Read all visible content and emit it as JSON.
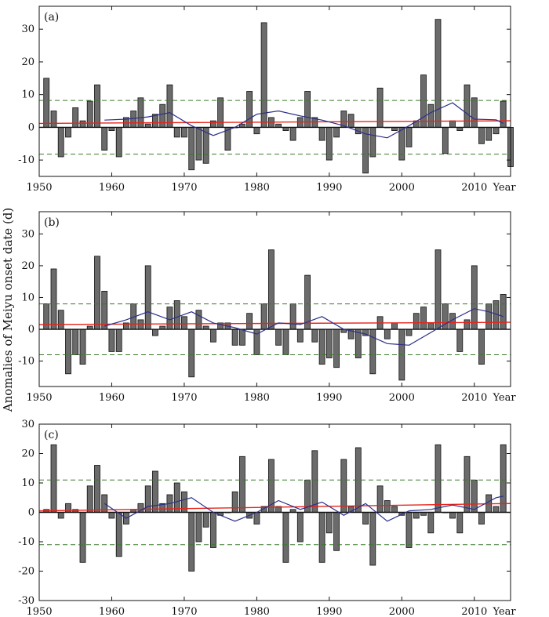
{
  "figure": {
    "ylabel": "Anomalies of  Meiyu  onset  date (d)",
    "xlabel": "Year"
  },
  "chart_data": [
    {
      "type": "bar",
      "panel_label": "(a)",
      "xlim": [
        1950,
        2015
      ],
      "ylim": [
        -15,
        37
      ],
      "xticks": [
        1950,
        1960,
        1970,
        1980,
        1990,
        2000,
        2010
      ],
      "yticks": [
        -10,
        0,
        10,
        20,
        30
      ],
      "bar_color": "#6b6b6b",
      "years": [
        1951,
        1952,
        1953,
        1954,
        1955,
        1956,
        1957,
        1958,
        1959,
        1960,
        1961,
        1962,
        1963,
        1964,
        1965,
        1966,
        1967,
        1968,
        1969,
        1970,
        1971,
        1972,
        1973,
        1974,
        1975,
        1976,
        1977,
        1978,
        1979,
        1980,
        1981,
        1982,
        1983,
        1984,
        1985,
        1986,
        1987,
        1988,
        1989,
        1990,
        1991,
        1992,
        1993,
        1994,
        1995,
        1996,
        1997,
        1998,
        1999,
        2000,
        2001,
        2002,
        2003,
        2004,
        2005,
        2006,
        2007,
        2008,
        2009,
        2010,
        2011,
        2012,
        2013,
        2014,
        2015
      ],
      "values": [
        15,
        5,
        -9,
        -3,
        6,
        2,
        8,
        13,
        -7,
        -1,
        -9,
        3,
        5,
        9,
        1,
        4,
        7,
        13,
        -3,
        -3,
        -13,
        -10,
        -11,
        2,
        9,
        -7,
        0,
        1,
        11,
        -2,
        32,
        3,
        1,
        -1,
        -4,
        3,
        11,
        3,
        -4,
        -10,
        -3,
        5,
        4,
        -2,
        -14,
        -9,
        12,
        0,
        -1,
        -10,
        -6,
        2,
        16,
        7,
        33,
        -8,
        2,
        -1,
        13,
        9,
        -5,
        -4,
        -2,
        8,
        -12
      ],
      "threshold_upper": 8.2,
      "threshold_lower": -8.2,
      "trend": {
        "start": [
          1950,
          1.2
        ],
        "end": [
          2015,
          2.0
        ]
      },
      "smooth_x": [
        1959,
        1962,
        1965,
        1968,
        1971,
        1974,
        1977,
        1980,
        1983,
        1986,
        1989,
        1992,
        1995,
        1998,
        2001,
        2004,
        2007,
        2010,
        2013,
        2014
      ],
      "smooth_y": [
        2.2,
        2.5,
        3.2,
        4.5,
        0.5,
        -2.5,
        0.0,
        4.0,
        5.0,
        3.5,
        2.2,
        0.5,
        -2.0,
        -3.2,
        0.5,
        4.5,
        7.5,
        2.5,
        2.3,
        1.2
      ],
      "threshold_color": "#3a7a2a",
      "trend_color": "#e8241a",
      "smooth_color": "#2b2f8a"
    },
    {
      "type": "bar",
      "panel_label": "(b)",
      "xlim": [
        1950,
        2015
      ],
      "ylim": [
        -18,
        37
      ],
      "xticks": [
        1950,
        1960,
        1970,
        1980,
        1990,
        2000,
        2010
      ],
      "yticks": [
        -10,
        0,
        10,
        20,
        30
      ],
      "bar_color": "#6b6b6b",
      "years": [
        1951,
        1952,
        1953,
        1954,
        1955,
        1956,
        1957,
        1958,
        1959,
        1960,
        1961,
        1962,
        1963,
        1964,
        1965,
        1966,
        1967,
        1968,
        1969,
        1970,
        1971,
        1972,
        1973,
        1974,
        1975,
        1976,
        1977,
        1978,
        1979,
        1980,
        1981,
        1982,
        1983,
        1984,
        1985,
        1986,
        1987,
        1988,
        1989,
        1990,
        1991,
        1992,
        1993,
        1994,
        1995,
        1996,
        1997,
        1998,
        1999,
        2000,
        2001,
        2002,
        2003,
        2004,
        2005,
        2006,
        2007,
        2008,
        2009,
        2010,
        2011,
        2012,
        2013,
        2014
      ],
      "values": [
        8,
        19,
        6,
        -14,
        -8,
        -11,
        1,
        23,
        12,
        -7,
        -7,
        2,
        8,
        3,
        20,
        -2,
        1,
        7,
        9,
        4,
        -15,
        6,
        1,
        -4,
        2,
        2,
        -5,
        -5,
        5,
        -8,
        8,
        25,
        -5,
        -8,
        8,
        -4,
        17,
        -4,
        -11,
        -9,
        -12,
        -1,
        -3,
        -9,
        -2,
        -14,
        4,
        -3,
        2,
        -16,
        -2,
        5,
        7,
        2,
        25,
        8,
        5,
        -7,
        3,
        20,
        -11,
        8,
        9,
        11
      ],
      "threshold_upper": 8.0,
      "threshold_lower": -8.0,
      "trend": {
        "start": [
          1950,
          1.5
        ],
        "end": [
          2015,
          2.2
        ]
      },
      "smooth_x": [
        1959,
        1962,
        1965,
        1968,
        1971,
        1974,
        1977,
        1980,
        1983,
        1986,
        1989,
        1992,
        1995,
        1998,
        2001,
        2004,
        2007,
        2010,
        2012,
        2014
      ],
      "smooth_y": [
        1.0,
        3.0,
        5.5,
        3.0,
        5.5,
        2.0,
        0.5,
        -1.5,
        2.0,
        1.5,
        4.0,
        0.0,
        -1.5,
        -4.5,
        -5.0,
        -1.0,
        3.0,
        6.5,
        5.5,
        4.0
      ],
      "threshold_color": "#3a7a2a",
      "trend_color": "#e8241a",
      "smooth_color": "#2b2f8a"
    },
    {
      "type": "bar",
      "panel_label": "(c)",
      "xlim": [
        1950,
        2015
      ],
      "ylim": [
        -30,
        30
      ],
      "xticks": [
        1950,
        1960,
        1970,
        1980,
        1990,
        2000,
        2010
      ],
      "yticks": [
        -30,
        -20,
        -10,
        0,
        10,
        20,
        30
      ],
      "bar_color": "#6b6b6b",
      "years": [
        1951,
        1952,
        1953,
        1954,
        1955,
        1956,
        1957,
        1958,
        1959,
        1960,
        1961,
        1962,
        1963,
        1964,
        1965,
        1966,
        1967,
        1968,
        1969,
        1970,
        1971,
        1972,
        1973,
        1974,
        1975,
        1976,
        1977,
        1978,
        1979,
        1980,
        1981,
        1982,
        1983,
        1984,
        1985,
        1986,
        1987,
        1988,
        1989,
        1990,
        1991,
        1992,
        1993,
        1994,
        1995,
        1996,
        1997,
        1998,
        1999,
        2000,
        2001,
        2002,
        2003,
        2004,
        2005,
        2006,
        2007,
        2008,
        2009,
        2010,
        2011,
        2012,
        2013,
        2014
      ],
      "values": [
        1,
        23,
        -2,
        3,
        1,
        -17,
        9,
        16,
        6,
        -2,
        -15,
        -4,
        1,
        3,
        9,
        14,
        3,
        6,
        10,
        7,
        -20,
        -10,
        -5,
        -12,
        -1,
        0,
        7,
        19,
        -2,
        -4,
        2,
        18,
        2,
        -17,
        1,
        -10,
        11,
        21,
        -17,
        -7,
        -13,
        18,
        2,
        22,
        -4,
        -18,
        9,
        4,
        2,
        -1,
        -12,
        -2,
        -1,
        -7,
        23,
        0,
        -2,
        -7,
        19,
        11,
        -4,
        6,
        2,
        23
      ],
      "threshold_upper": 11.0,
      "threshold_lower": -11.0,
      "trend": {
        "start": [
          1950,
          0.5
        ],
        "end": [
          2015,
          3.0
        ]
      },
      "smooth_x": [
        1959,
        1962,
        1965,
        1968,
        1971,
        1974,
        1977,
        1980,
        1983,
        1986,
        1989,
        1992,
        1995,
        1998,
        2001,
        2004,
        2007,
        2010,
        2013,
        2014
      ],
      "smooth_y": [
        3.0,
        -2.0,
        2.0,
        3.0,
        5.0,
        0.0,
        -3.0,
        0.0,
        4.0,
        1.0,
        3.5,
        -1.0,
        3.0,
        -3.0,
        0.5,
        1.0,
        2.5,
        1.0,
        5.0,
        5.5
      ],
      "threshold_color": "#3a7a2a",
      "trend_color": "#e8241a",
      "smooth_color": "#2b2f8a"
    }
  ]
}
